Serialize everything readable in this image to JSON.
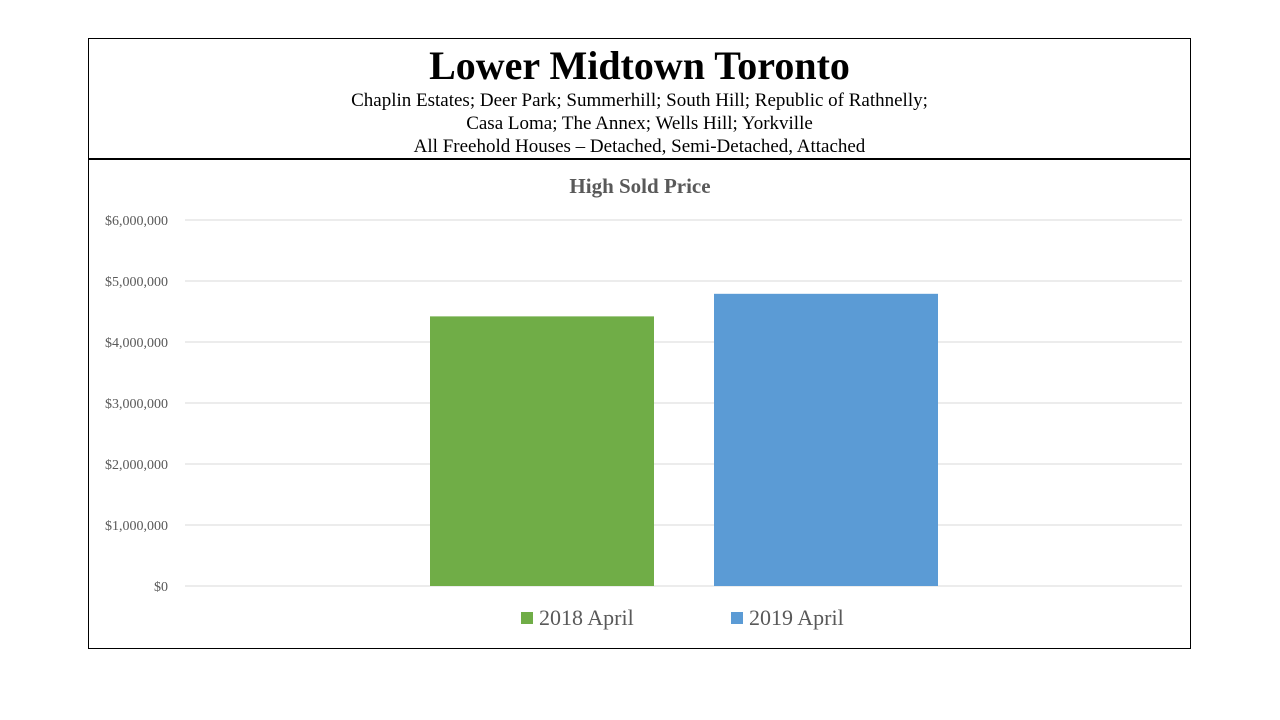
{
  "header": {
    "title": "Lower Midtown Toronto",
    "line1": "Chaplin Estates; Deer Park; Summerhill;  South Hill; Republic of Rathnelly;",
    "line2": "Casa Loma; The Annex;  Wells Hill; Yorkville",
    "line3": "All Freehold Houses – Detached,  Semi-Detached,  Attached"
  },
  "chart_data": {
    "type": "bar",
    "title": "High Sold Price",
    "categories": [
      "2018 April",
      "2019 April"
    ],
    "values": [
      4420000,
      4790000
    ],
    "colors": [
      "#70ad47",
      "#5b9bd5"
    ],
    "ylim": [
      0,
      6000000
    ],
    "yticks": [
      0,
      1000000,
      2000000,
      3000000,
      4000000,
      5000000,
      6000000
    ],
    "ytick_labels": [
      "$0",
      "$1,000,000",
      "$2,000,000",
      "$3,000,000",
      "$4,000,000",
      "$5,000,000",
      "$6,000,000"
    ],
    "grid": true,
    "legend_position": "bottom"
  }
}
